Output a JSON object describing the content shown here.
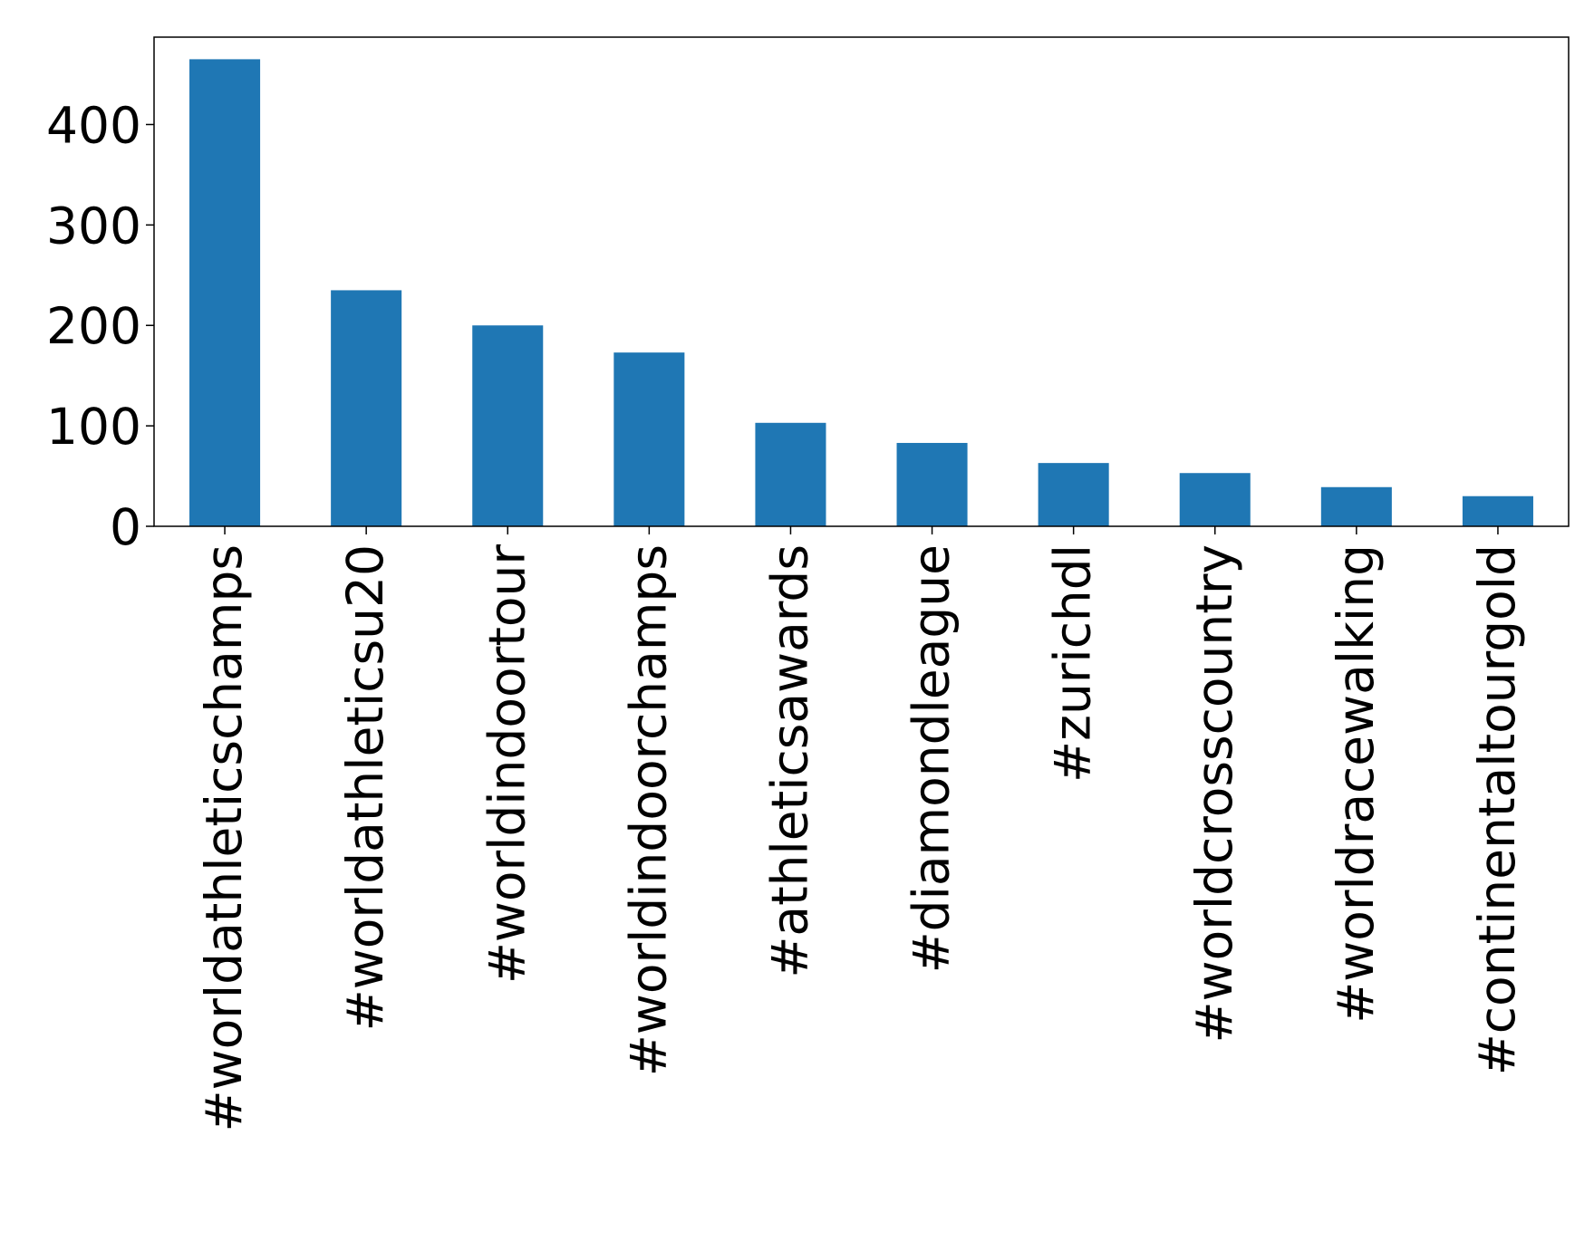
{
  "chart_data": {
    "type": "bar",
    "title": "",
    "xlabel": "",
    "ylabel": "",
    "categories": [
      "#worldathleticschamps",
      "#worldathleticsu20",
      "#worldindoortour",
      "#worldindoorchamps",
      "#athleticsawards",
      "#diamondleague",
      "#zurichdl",
      "#worldcrosscountry",
      "#worldracewalking",
      "#continentaltourgold"
    ],
    "values": [
      465,
      235,
      200,
      173,
      103,
      83,
      63,
      53,
      39,
      30
    ],
    "ylim": [
      0,
      487
    ],
    "yticks": [
      0,
      100,
      200,
      300,
      400
    ],
    "grid": false,
    "legend": "none",
    "bar_color": "#1f77b4"
  }
}
